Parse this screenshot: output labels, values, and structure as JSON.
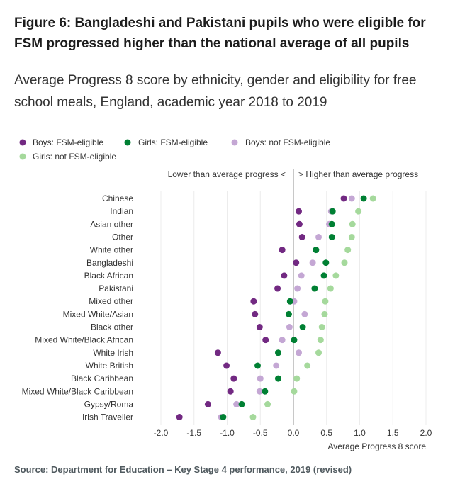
{
  "title": "Figure 6: Bangladeshi and Pakistani pupils who were eligible for FSM progressed higher than the national average of all pupils",
  "subtitle": "Average Progress 8 score by ethnicity, gender and eligibility for free school meals, England, academic year 2018 to 2019",
  "source": "Source: Department for Education – Key Stage 4 performance, 2019 (revised)",
  "colors": {
    "boys_fsm": "#722982",
    "girls_fsm": "#008033",
    "boys_not_fsm": "#c4a7d4",
    "girls_not_fsm": "#a5d99c"
  },
  "chart_data": {
    "type": "scatter",
    "categories": [
      "Chinese",
      "Indian",
      "Asian other",
      "Other",
      "White other",
      "Bangladeshi",
      "Black African",
      "Pakistani",
      "Mixed other",
      "Mixed White/Asian",
      "Black other",
      "Mixed White/Black African",
      "White Irish",
      "White British",
      "Black Caribbean",
      "Mixed White/Black Caribbean",
      "Gypsy/Roma",
      "Irish Traveller"
    ],
    "series": [
      {
        "name": "Boys: FSM-eligible",
        "color_key": "boys_fsm",
        "values": [
          0.76,
          0.08,
          0.09,
          0.13,
          -0.17,
          0.04,
          -0.14,
          -0.24,
          -0.6,
          -0.58,
          -0.51,
          -0.42,
          -1.14,
          -1.01,
          -0.9,
          -0.95,
          -1.29,
          -1.72
        ]
      },
      {
        "name": "Girls: FSM-eligible",
        "color_key": "girls_fsm",
        "values": [
          1.06,
          0.59,
          0.58,
          0.58,
          0.34,
          0.49,
          0.46,
          0.32,
          -0.05,
          -0.07,
          0.14,
          0.01,
          -0.23,
          -0.54,
          -0.23,
          -0.43,
          -0.78,
          -1.06
        ]
      },
      {
        "name": "Boys: not FSM-eligible",
        "color_key": "boys_not_fsm",
        "values": [
          0.88,
          0.57,
          0.54,
          0.38,
          0.34,
          0.29,
          0.12,
          0.06,
          0.01,
          0.17,
          -0.06,
          -0.17,
          0.08,
          -0.26,
          -0.5,
          -0.51,
          -0.86,
          -1.09
        ]
      },
      {
        "name": "Girls: not FSM-eligible",
        "color_key": "girls_not_fsm",
        "values": [
          1.2,
          0.98,
          0.89,
          0.88,
          0.82,
          0.77,
          0.64,
          0.56,
          0.48,
          0.47,
          0.43,
          0.41,
          0.38,
          0.21,
          0.05,
          0.01,
          -0.39,
          -0.61
        ]
      }
    ],
    "xlim": [
      -2.0,
      2.0
    ],
    "xticks": [
      -2.0,
      -1.5,
      -1.0,
      -0.5,
      0.0,
      0.5,
      1.0,
      1.5,
      2.0
    ],
    "xtick_labels": [
      "-2.0",
      "-1.5",
      "-1.0",
      "-0.5",
      "0.0",
      "0.5",
      "1.0",
      "1.5",
      "2.0"
    ],
    "xlabel": "Average Progress 8 score",
    "annotation_left": "Lower than average progress <",
    "annotation_right": "> Higher than average progress",
    "legend_position": "top-left",
    "grid": true
  }
}
